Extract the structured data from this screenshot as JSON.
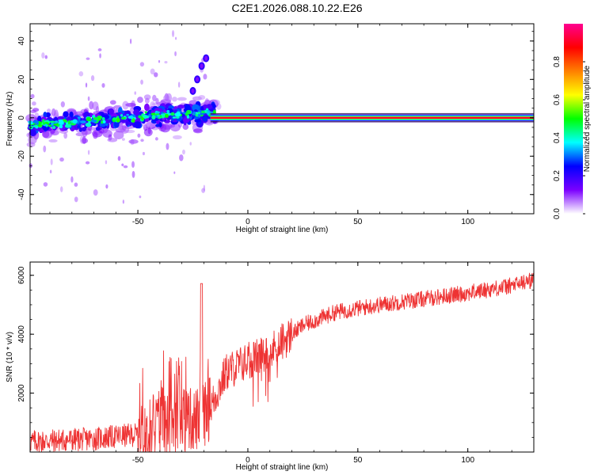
{
  "figure_title": "C2E1.2026.088.10.22.E26",
  "chart_data": [
    {
      "type": "heatmap",
      "panel": "top",
      "title": "",
      "xlabel": "Height of straight line (km)",
      "ylabel": "Frequency (Hz)",
      "xlim": [
        -99,
        130
      ],
      "ylim": [
        -50,
        49
      ],
      "xticks": [
        -50,
        0,
        50,
        100
      ],
      "yticks": [
        -40,
        -20,
        0,
        20,
        40
      ],
      "colorbar": {
        "label": "Normalized spectral amplitude",
        "range": [
          0,
          1
        ],
        "ticks": [
          "0.0",
          "0.2",
          "0.4",
          "0.6",
          "0.8"
        ],
        "colormap": [
          "#ffffff",
          "#7b00ff",
          "#0000ff",
          "#00ffff",
          "#00ff00",
          "#ffff00",
          "#ff8000",
          "#ff0000",
          "#ff0090"
        ]
      },
      "line_feature": {
        "frequency_hz": 0,
        "x_start": -17,
        "x_end": 130,
        "amplitude": 1.0
      },
      "scatter_band": {
        "x_start": -99,
        "x_end": -17,
        "freq_start": -4,
        "freq_end": 3
      },
      "upward_streak": [
        {
          "x": -25,
          "y": 14
        },
        {
          "x": -23,
          "y": 20
        },
        {
          "x": -21,
          "y": 27
        },
        {
          "x": -19,
          "y": 31
        }
      ]
    },
    {
      "type": "line",
      "panel": "bottom",
      "title": "",
      "xlabel": "Height of straight line (km)",
      "ylabel": "SNR (10 * v/v)",
      "xlim": [
        -99,
        130
      ],
      "ylim": [
        0,
        6450
      ],
      "xticks": [
        -50,
        0,
        50,
        100
      ],
      "yticks": [
        2000,
        4000,
        6000
      ],
      "series": [
        {
          "name": "SNR",
          "color": "#ee3333",
          "trend": {
            "x": [
              -99,
              -70,
              -50,
              -40,
              -30,
              -22,
              -17,
              -10,
              0,
              8,
              15,
              25,
              40,
              60,
              80,
              100,
              120,
              130
            ],
            "y": [
              350,
              450,
              600,
              900,
              1100,
              1100,
              1500,
              2700,
              3100,
              3300,
              3700,
              4300,
              4750,
              5000,
              5200,
              5400,
              5650,
              5850
            ]
          },
          "spike": {
            "x": -21,
            "y": 5720
          }
        }
      ]
    }
  ]
}
